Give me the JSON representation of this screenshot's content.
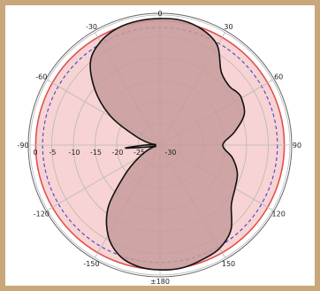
{
  "chart_data": {
    "type": "polar",
    "angular_unit": "degrees",
    "zero_direction": "top",
    "angle_ticks": [
      0,
      30,
      60,
      90,
      120,
      150,
      180,
      -150,
      -120,
      -90,
      -60,
      -30
    ],
    "angle_tick_labels": [
      "0",
      "30",
      "60",
      "90",
      "120",
      "150",
      "±180",
      "-150",
      "-120",
      "-90",
      "-60",
      "-30"
    ],
    "radial_ticks": [
      0,
      -5,
      -10,
      -15,
      -20,
      -25,
      -30
    ],
    "radial_tick_labels": [
      "0",
      "-5",
      "-10",
      "-15",
      "-20",
      "-25",
      "-30"
    ],
    "rlim": [
      -30,
      0
    ],
    "grid": true,
    "colors": {
      "frame": "#c8a77b",
      "reference_fill": "#f7d3d3",
      "reference_line": "#e05050",
      "dashed_circle": "#4444cc",
      "pattern_fill": "#c79b9b",
      "pattern_line": "#111111",
      "grid": "#b8b8b8"
    },
    "reference_circle_dB": -1.3,
    "dashed_circle_dB": -2.9,
    "pattern": {
      "name": "",
      "angles_deg": [
        0,
        10,
        20,
        30,
        40,
        50,
        55,
        60,
        70,
        80,
        90,
        100,
        110,
        120,
        130,
        140,
        150,
        160,
        170,
        180,
        190,
        200,
        210,
        220,
        230,
        240,
        250,
        255,
        260,
        265,
        270,
        275,
        280,
        290,
        300,
        310,
        320,
        330,
        340,
        350
      ],
      "values_dB": [
        -0.8,
        -0.8,
        -1.6,
        -3.5,
        -8.0,
        -9.0,
        -8.5,
        -8.3,
        -9.3,
        -12.5,
        -15.5,
        -13.0,
        -11.0,
        -10.0,
        -8.5,
        -4.5,
        -2.5,
        -1.8,
        -1.2,
        -1.2,
        -1.5,
        -2.8,
        -6.0,
        -11.5,
        -19.5,
        -24.5,
        -27.5,
        -29.0,
        -27.5,
        -22.0,
        -26.5,
        -29.0,
        -27.5,
        -24.0,
        -17.0,
        -10.5,
        -5.0,
        -2.5,
        -1.3,
        -0.9
      ]
    }
  }
}
